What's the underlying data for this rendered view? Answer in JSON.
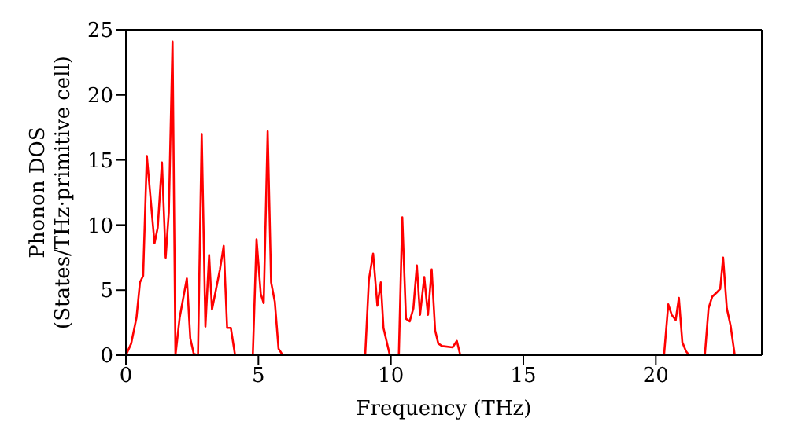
{
  "chart_data": {
    "type": "line",
    "xlabel": "Frequency (THz)",
    "ylabel": "Phonon DOS\n(States/THz·primitive cell)",
    "x": [
      0,
      0.2,
      0.4,
      0.53,
      0.65,
      0.79,
      1.08,
      1.2,
      1.36,
      1.5,
      1.62,
      1.76,
      1.87,
      2.03,
      2.3,
      2.43,
      2.56,
      2.72,
      2.86,
      3.0,
      3.14,
      3.25,
      3.55,
      3.69,
      3.82,
      3.96,
      4.12,
      4.79,
      4.93,
      5.09,
      5.2,
      5.35,
      5.48,
      5.62,
      5.76,
      5.92,
      9.03,
      9.17,
      9.33,
      9.49,
      9.62,
      9.72,
      9.96,
      10.3,
      10.43,
      10.57,
      10.71,
      10.85,
      10.98,
      11.1,
      11.26,
      11.4,
      11.54,
      11.67,
      11.79,
      11.93,
      12.33,
      12.49,
      12.62,
      20.31,
      20.47,
      20.6,
      20.75,
      20.87,
      21.0,
      21.14,
      21.26,
      21.85,
      21.99,
      22.13,
      22.29,
      22.43,
      22.54,
      22.68,
      22.82,
      22.98
    ],
    "series": [
      {
        "color": "#ff0000",
        "values": [
          0,
          0.9,
          2.9,
          5.6,
          6.1,
          15.3,
          8.6,
          9.8,
          14.8,
          7.5,
          11,
          24.1,
          0,
          2.9,
          5.9,
          1.3,
          0.1,
          0,
          17,
          2.2,
          7.7,
          3.5,
          6.6,
          8.4,
          2.1,
          2.1,
          0,
          0,
          8.9,
          4.7,
          4.0,
          17.2,
          5.6,
          4.1,
          0.5,
          0,
          0,
          5.8,
          7.8,
          3.8,
          5.6,
          2.1,
          0,
          0,
          10.6,
          2.8,
          2.6,
          3.6,
          6.9,
          3.1,
          6.0,
          3.1,
          6.6,
          1.9,
          0.9,
          0.7,
          0.6,
          1.1,
          0,
          0,
          3.9,
          3.1,
          2.7,
          4.4,
          1.0,
          0.3,
          0,
          0,
          3.6,
          4.5,
          4.8,
          5.1,
          7.5,
          3.6,
          2.3,
          0
        ]
      }
    ],
    "xlim": [
      0,
      24
    ],
    "xticks": [
      0,
      5,
      10,
      15,
      20
    ],
    "ylim": [
      0,
      25
    ],
    "yticks": [
      0,
      5,
      10,
      15,
      20,
      25
    ],
    "grid": false,
    "legend": false,
    "marker": "none",
    "line_style": "solid"
  }
}
